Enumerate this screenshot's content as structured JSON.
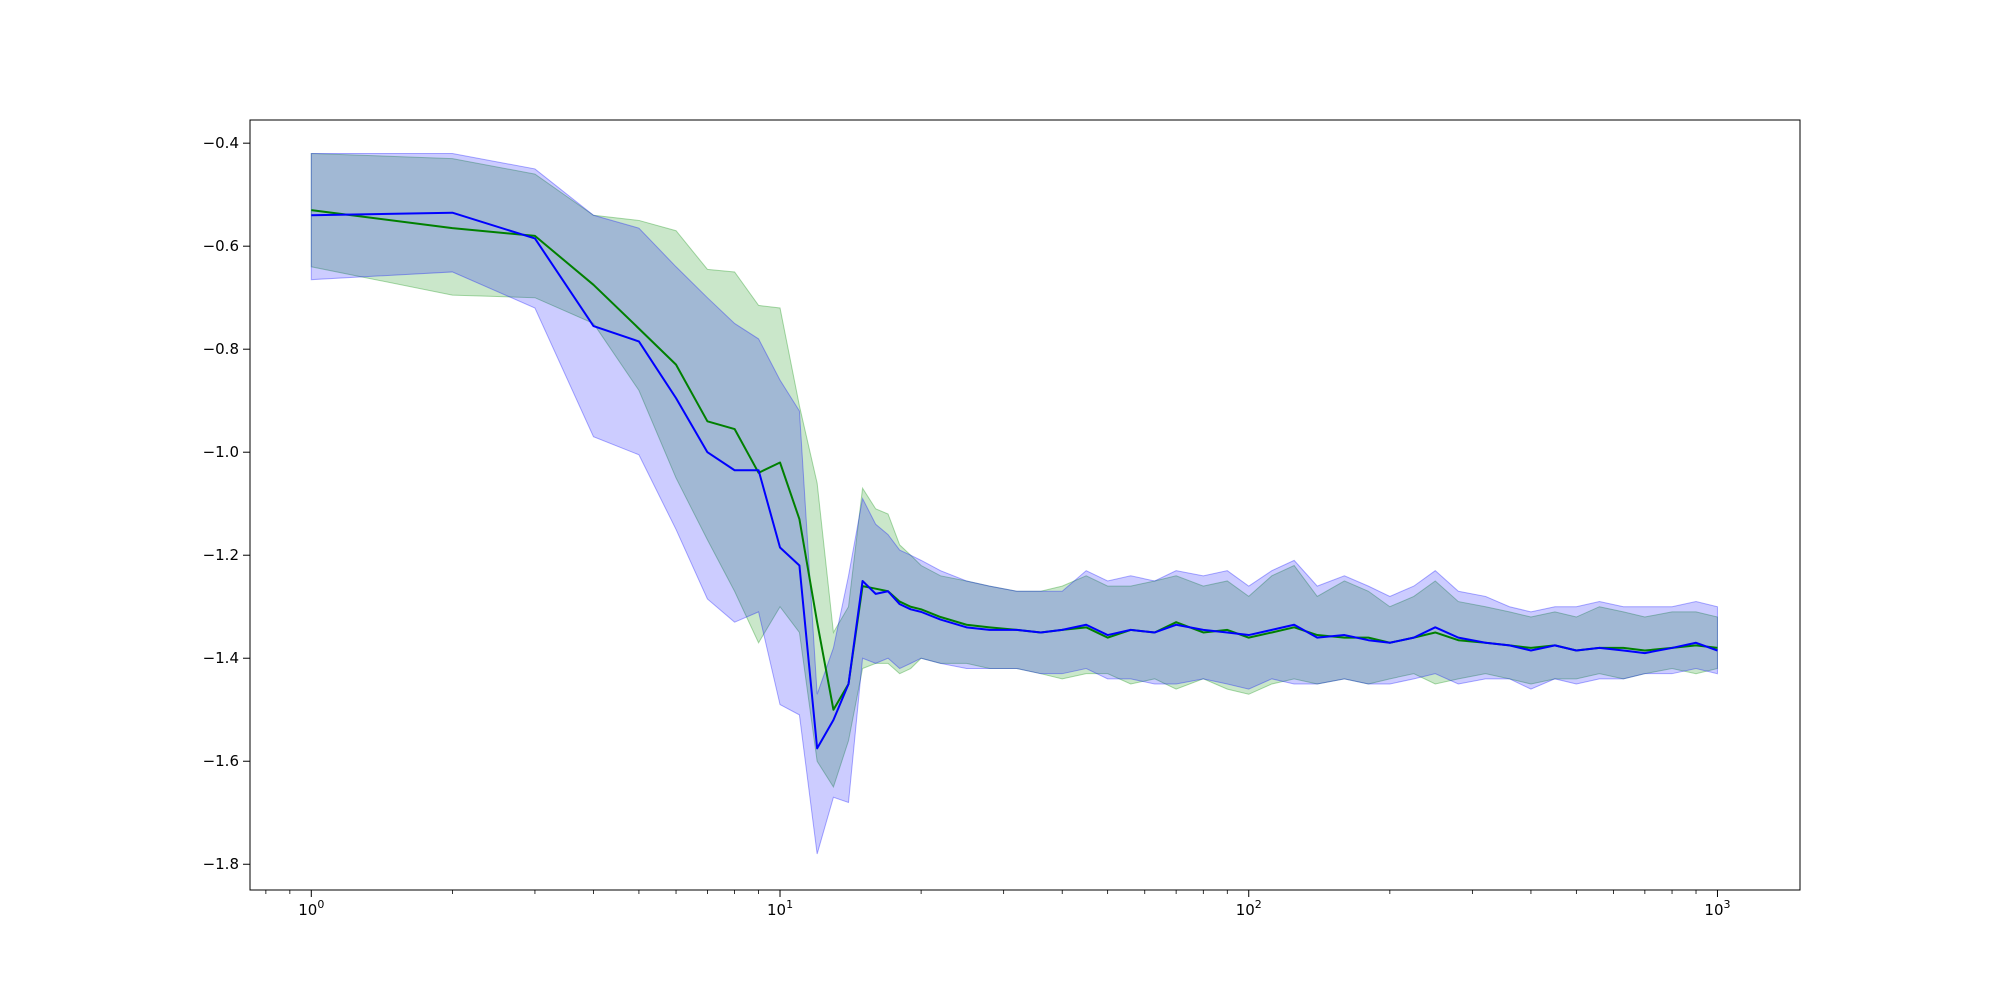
{
  "chart_data": {
    "type": "line",
    "title": "",
    "xlabel": "",
    "ylabel": "",
    "xscale": "log",
    "xlim": [
      0.74,
      1500
    ],
    "ylim": [
      -1.85,
      -0.355
    ],
    "grid": false,
    "legend": "none",
    "x_ticks": [
      {
        "value": 1,
        "base": "10",
        "exp": "0"
      },
      {
        "value": 10,
        "base": "10",
        "exp": "1"
      },
      {
        "value": 100,
        "base": "10",
        "exp": "2"
      },
      {
        "value": 1000,
        "base": "10",
        "exp": "3"
      }
    ],
    "y_ticks": [
      {
        "value": -0.4,
        "label": "−0.4"
      },
      {
        "value": -0.6,
        "label": "−0.6"
      },
      {
        "value": -0.8,
        "label": "−0.8"
      },
      {
        "value": -1.0,
        "label": "−1.0"
      },
      {
        "value": -1.2,
        "label": "−1.2"
      },
      {
        "value": -1.4,
        "label": "−1.4"
      },
      {
        "value": -1.6,
        "label": "−1.6"
      },
      {
        "value": -1.8,
        "label": "−1.8"
      }
    ],
    "series": [
      {
        "color": "#008000",
        "band_color": "#2ca02c",
        "band_opacity": 0.25,
        "x": [
          1,
          2,
          3,
          4,
          5,
          6,
          7,
          8,
          9,
          10,
          11,
          12,
          13,
          14,
          15,
          16,
          17,
          18,
          19,
          20,
          22,
          25,
          28,
          32,
          36,
          40,
          45,
          50,
          56,
          63,
          70,
          80,
          90,
          100,
          112,
          125,
          140,
          160,
          180,
          200,
          225,
          250,
          280,
          320,
          360,
          400,
          450,
          500,
          560,
          630,
          700,
          800,
          900,
          1000
        ],
        "y": [
          -0.53,
          -0.565,
          -0.58,
          -0.675,
          -0.76,
          -0.83,
          -0.94,
          -0.955,
          -1.04,
          -1.02,
          -1.13,
          -1.33,
          -1.5,
          -1.45,
          -1.26,
          -1.265,
          -1.27,
          -1.29,
          -1.3,
          -1.305,
          -1.32,
          -1.335,
          -1.34,
          -1.345,
          -1.35,
          -1.345,
          -1.34,
          -1.36,
          -1.345,
          -1.35,
          -1.33,
          -1.35,
          -1.345,
          -1.36,
          -1.35,
          -1.34,
          -1.355,
          -1.36,
          -1.36,
          -1.37,
          -1.36,
          -1.35,
          -1.365,
          -1.37,
          -1.375,
          -1.38,
          -1.375,
          -1.385,
          -1.38,
          -1.38,
          -1.385,
          -1.38,
          -1.375,
          -1.38
        ],
        "lower": [
          -0.64,
          -0.695,
          -0.7,
          -0.75,
          -0.88,
          -1.05,
          -1.17,
          -1.27,
          -1.37,
          -1.3,
          -1.35,
          -1.6,
          -1.65,
          -1.56,
          -1.42,
          -1.41,
          -1.41,
          -1.43,
          -1.42,
          -1.4,
          -1.41,
          -1.41,
          -1.42,
          -1.42,
          -1.43,
          -1.44,
          -1.43,
          -1.43,
          -1.45,
          -1.44,
          -1.46,
          -1.44,
          -1.46,
          -1.47,
          -1.45,
          -1.44,
          -1.45,
          -1.44,
          -1.45,
          -1.44,
          -1.43,
          -1.45,
          -1.44,
          -1.43,
          -1.44,
          -1.45,
          -1.44,
          -1.44,
          -1.43,
          -1.44,
          -1.43,
          -1.42,
          -1.43,
          -1.42
        ],
        "upper": [
          -0.42,
          -0.43,
          -0.46,
          -0.54,
          -0.55,
          -0.57,
          -0.645,
          -0.65,
          -0.715,
          -0.72,
          -0.91,
          -1.06,
          -1.35,
          -1.3,
          -1.07,
          -1.11,
          -1.12,
          -1.18,
          -1.2,
          -1.22,
          -1.24,
          -1.25,
          -1.26,
          -1.27,
          -1.27,
          -1.26,
          -1.24,
          -1.26,
          -1.26,
          -1.25,
          -1.24,
          -1.26,
          -1.25,
          -1.28,
          -1.24,
          -1.22,
          -1.28,
          -1.25,
          -1.27,
          -1.3,
          -1.28,
          -1.25,
          -1.29,
          -1.3,
          -1.31,
          -1.32,
          -1.31,
          -1.32,
          -1.3,
          -1.31,
          -1.32,
          -1.31,
          -1.31,
          -1.32
        ]
      },
      {
        "color": "#0000ff",
        "band_color": "#0000ff",
        "band_opacity": 0.2,
        "x": [
          1,
          2,
          3,
          4,
          5,
          6,
          7,
          8,
          9,
          10,
          11,
          12,
          13,
          14,
          15,
          16,
          17,
          18,
          19,
          20,
          22,
          25,
          28,
          32,
          36,
          40,
          45,
          50,
          56,
          63,
          70,
          80,
          90,
          100,
          112,
          125,
          140,
          160,
          180,
          200,
          225,
          250,
          280,
          320,
          360,
          400,
          450,
          500,
          560,
          630,
          700,
          800,
          900,
          1000
        ],
        "y": [
          -0.54,
          -0.535,
          -0.585,
          -0.755,
          -0.785,
          -0.895,
          -1.0,
          -1.035,
          -1.035,
          -1.185,
          -1.22,
          -1.575,
          -1.52,
          -1.45,
          -1.25,
          -1.275,
          -1.27,
          -1.295,
          -1.305,
          -1.31,
          -1.325,
          -1.34,
          -1.345,
          -1.345,
          -1.35,
          -1.345,
          -1.335,
          -1.355,
          -1.345,
          -1.35,
          -1.335,
          -1.345,
          -1.35,
          -1.355,
          -1.345,
          -1.335,
          -1.36,
          -1.355,
          -1.365,
          -1.37,
          -1.36,
          -1.34,
          -1.36,
          -1.37,
          -1.375,
          -1.385,
          -1.375,
          -1.385,
          -1.38,
          -1.385,
          -1.39,
          -1.38,
          -1.37,
          -1.385
        ],
        "lower": [
          -0.665,
          -0.65,
          -0.72,
          -0.97,
          -1.005,
          -1.15,
          -1.285,
          -1.33,
          -1.31,
          -1.49,
          -1.51,
          -1.78,
          -1.67,
          -1.68,
          -1.4,
          -1.41,
          -1.4,
          -1.42,
          -1.41,
          -1.4,
          -1.41,
          -1.42,
          -1.42,
          -1.42,
          -1.43,
          -1.43,
          -1.42,
          -1.44,
          -1.44,
          -1.45,
          -1.45,
          -1.44,
          -1.45,
          -1.46,
          -1.44,
          -1.45,
          -1.45,
          -1.44,
          -1.45,
          -1.45,
          -1.44,
          -1.43,
          -1.45,
          -1.44,
          -1.44,
          -1.46,
          -1.44,
          -1.45,
          -1.44,
          -1.44,
          -1.43,
          -1.43,
          -1.42,
          -1.43
        ],
        "upper": [
          -0.42,
          -0.42,
          -0.45,
          -0.54,
          -0.565,
          -0.64,
          -0.7,
          -0.75,
          -0.78,
          -0.86,
          -0.92,
          -1.47,
          -1.38,
          -1.24,
          -1.09,
          -1.14,
          -1.16,
          -1.19,
          -1.2,
          -1.21,
          -1.23,
          -1.25,
          -1.26,
          -1.27,
          -1.27,
          -1.27,
          -1.23,
          -1.25,
          -1.24,
          -1.25,
          -1.23,
          -1.24,
          -1.23,
          -1.26,
          -1.23,
          -1.21,
          -1.26,
          -1.24,
          -1.26,
          -1.28,
          -1.26,
          -1.23,
          -1.27,
          -1.28,
          -1.3,
          -1.31,
          -1.3,
          -1.3,
          -1.29,
          -1.3,
          -1.3,
          -1.3,
          -1.29,
          -1.3
        ]
      }
    ]
  }
}
